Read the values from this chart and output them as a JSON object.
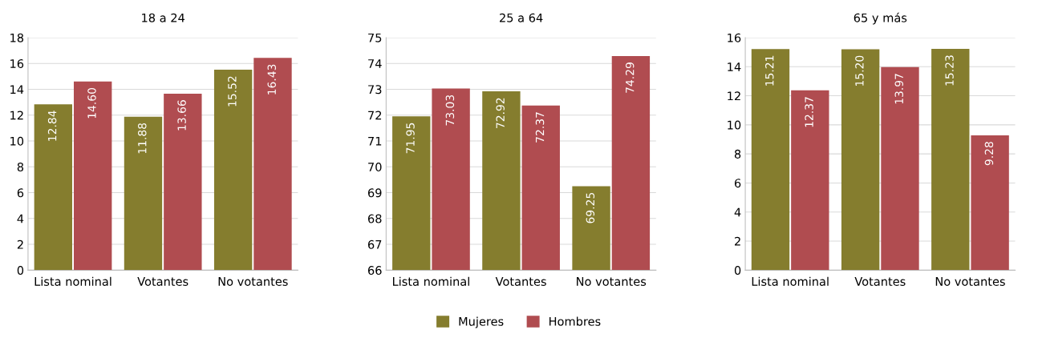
{
  "chart_data": [
    {
      "type": "bar",
      "title": "18 a 24",
      "categories": [
        "Lista nominal",
        "Votantes",
        "No votantes"
      ],
      "series": [
        {
          "name": "Mujeres",
          "color": "#857d2e",
          "values": [
            12.84,
            11.88,
            15.52
          ],
          "value_labels": [
            "12.84",
            "11.88",
            "15.52"
          ]
        },
        {
          "name": "Hombres",
          "color": "#b04c50",
          "values": [
            14.6,
            13.66,
            16.43
          ],
          "value_labels": [
            "14.60",
            "13.66",
            "16.43"
          ]
        }
      ],
      "ylim": [
        0,
        18
      ],
      "yticks": [
        0,
        2,
        4,
        6,
        8,
        10,
        12,
        14,
        16,
        18
      ],
      "grid": "y",
      "legend": "bottom"
    },
    {
      "type": "bar",
      "title": "25 a 64",
      "categories": [
        "Lista nominal",
        "Votantes",
        "No votantes"
      ],
      "series": [
        {
          "name": "Mujeres",
          "color": "#857d2e",
          "values": [
            71.95,
            72.92,
            69.25
          ],
          "value_labels": [
            "71.95",
            "72.92",
            "69.25"
          ]
        },
        {
          "name": "Hombres",
          "color": "#b04c50",
          "values": [
            73.03,
            72.37,
            74.29
          ],
          "value_labels": [
            "73.03",
            "72.37",
            "74.29"
          ]
        }
      ],
      "ylim": [
        66,
        75
      ],
      "yticks": [
        66,
        67,
        68,
        69,
        70,
        71,
        72,
        73,
        74,
        75
      ],
      "grid": "y",
      "legend": "bottom"
    },
    {
      "type": "bar",
      "title": "65 y más",
      "categories": [
        "Lista nominal",
        "Votantes",
        "No votantes"
      ],
      "series": [
        {
          "name": "Mujeres",
          "color": "#857d2e",
          "values": [
            15.21,
            15.2,
            15.23
          ],
          "value_labels": [
            "15.21",
            "15.20",
            "15.23"
          ]
        },
        {
          "name": "Hombres",
          "color": "#b04c50",
          "values": [
            12.37,
            13.97,
            9.28
          ],
          "value_labels": [
            "12.37",
            "13.97",
            "9.28"
          ]
        }
      ],
      "ylim": [
        0,
        16
      ],
      "yticks": [
        0,
        2,
        4,
        6,
        8,
        10,
        12,
        14,
        16
      ],
      "grid": "y",
      "legend": "bottom"
    }
  ]
}
